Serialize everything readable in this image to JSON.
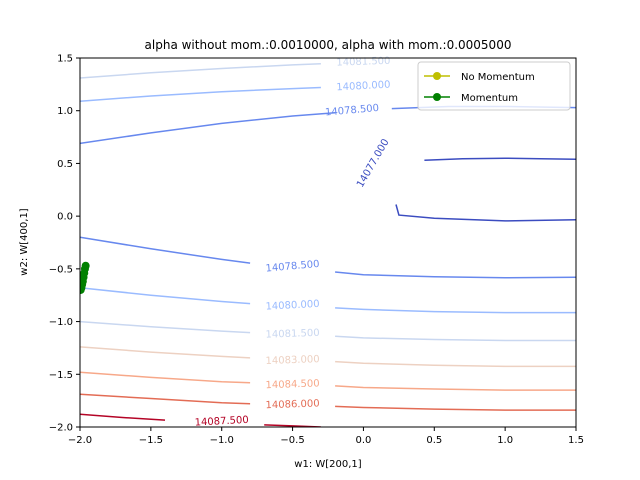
{
  "chart_data": {
    "type": "line",
    "title": "alpha without mom.:0.0010000, alpha with mom.:0.0005000",
    "xlabel": "w1: W[200,1]",
    "ylabel": "w2: W[400,1]",
    "xlim": [
      -2.0,
      1.5
    ],
    "ylim": [
      -2.0,
      1.5
    ],
    "x_ticks": [
      "-2.0",
      "-1.5",
      "-1.0",
      "-0.5",
      "0.0",
      "0.5",
      "1.0",
      "1.5"
    ],
    "y_ticks": [
      "-2.0",
      "-1.5",
      "-1.0",
      "-0.5",
      "0.0",
      "0.5",
      "1.0",
      "1.5"
    ],
    "grid": false,
    "legend_position": "top-right",
    "contours": [
      {
        "level": "14077.000",
        "color": "#3b4cc0",
        "paths": [
          [
            [
              0.43,
              0.53
            ],
            [
              0.7,
              0.545
            ],
            [
              1.0,
              0.55
            ],
            [
              1.25,
              0.545
            ],
            [
              1.5,
              0.54
            ]
          ],
          [
            [
              0.23,
              0.11
            ],
            [
              0.25,
              0.01
            ],
            [
              0.5,
              -0.02
            ],
            [
              1.0,
              -0.045
            ],
            [
              1.5,
              -0.035
            ]
          ]
        ],
        "label_at": [
          0.07,
          0.5
        ],
        "label_angle": -60
      },
      {
        "level": "14078.500",
        "color": "#6788ee",
        "paths": [
          [
            [
              -2.0,
              0.69
            ],
            [
              -1.5,
              0.79
            ],
            [
              -1.0,
              0.88
            ],
            [
              -0.5,
              0.95
            ],
            [
              -0.2,
              0.98
            ]
          ],
          [
            [
              0.2,
              1.02
            ],
            [
              0.6,
              1.04
            ],
            [
              1.0,
              1.04
            ],
            [
              1.5,
              1.03
            ]
          ],
          [
            [
              -2.0,
              -0.2
            ],
            [
              -1.5,
              -0.31
            ],
            [
              -1.0,
              -0.41
            ],
            [
              -0.8,
              -0.445
            ]
          ],
          [
            [
              -0.2,
              -0.53
            ],
            [
              0.0,
              -0.555
            ],
            [
              0.5,
              -0.575
            ],
            [
              1.0,
              -0.585
            ],
            [
              1.5,
              -0.58
            ]
          ]
        ],
        "label_at": [
          -0.08,
          1.0
        ],
        "label_angle": -5,
        "label2_at": [
          -0.5,
          -0.48
        ],
        "label2_angle": -5
      },
      {
        "level": "14080.000",
        "color": "#9abbff",
        "paths": [
          [
            [
              -2.0,
              1.09
            ],
            [
              -1.5,
              1.14
            ],
            [
              -1.0,
              1.18
            ],
            [
              -0.5,
              1.21
            ],
            [
              -0.3,
              1.22
            ]
          ],
          [
            [
              -2.0,
              -0.68
            ],
            [
              -1.5,
              -0.75
            ],
            [
              -1.0,
              -0.81
            ],
            [
              -0.8,
              -0.83
            ]
          ],
          [
            [
              -0.2,
              -0.87
            ],
            [
              0.0,
              -0.885
            ],
            [
              0.5,
              -0.905
            ],
            [
              1.0,
              -0.915
            ],
            [
              1.5,
              -0.915
            ]
          ]
        ],
        "label_at": [
          0.0,
          1.23
        ],
        "label_angle": -3,
        "label2_at": [
          -0.5,
          -0.85
        ],
        "label2_angle": -3
      },
      {
        "level": "14081.500",
        "color": "#c9d7f0",
        "paths": [
          [
            [
              -2.0,
              1.31
            ],
            [
              -1.5,
              1.36
            ],
            [
              -1.0,
              1.4
            ],
            [
              -0.5,
              1.435
            ],
            [
              -0.3,
              1.445
            ]
          ],
          [
            [
              -2.0,
              -1.0
            ],
            [
              -1.5,
              -1.05
            ],
            [
              -1.0,
              -1.09
            ],
            [
              -0.8,
              -1.105
            ]
          ],
          [
            [
              -0.2,
              -1.14
            ],
            [
              0.0,
              -1.155
            ],
            [
              0.5,
              -1.17
            ],
            [
              1.0,
              -1.18
            ],
            [
              1.5,
              -1.18
            ]
          ]
        ],
        "label_at": [
          0.0,
          1.46
        ],
        "label_angle": -2,
        "label2_at": [
          -0.5,
          -1.12
        ],
        "label2_angle": -2
      },
      {
        "level": "14083.000",
        "color": "#edd1c2",
        "paths": [
          [
            [
              -2.0,
              -1.24
            ],
            [
              -1.5,
              -1.29
            ],
            [
              -1.0,
              -1.33
            ],
            [
              -0.8,
              -1.345
            ]
          ],
          [
            [
              -0.2,
              -1.38
            ],
            [
              0.0,
              -1.395
            ],
            [
              0.5,
              -1.415
            ],
            [
              1.0,
              -1.425
            ],
            [
              1.5,
              -1.425
            ]
          ]
        ],
        "label2_at": [
          -0.5,
          -1.37
        ],
        "label2_angle": -2
      },
      {
        "level": "14084.500",
        "color": "#f7a889",
        "paths": [
          [
            [
              -2.0,
              -1.48
            ],
            [
              -1.5,
              -1.53
            ],
            [
              -1.0,
              -1.57
            ],
            [
              -0.8,
              -1.58
            ]
          ],
          [
            [
              -0.2,
              -1.61
            ],
            [
              0.0,
              -1.625
            ],
            [
              0.5,
              -1.64
            ],
            [
              1.0,
              -1.65
            ],
            [
              1.5,
              -1.65
            ]
          ]
        ],
        "label2_at": [
          -0.5,
          -1.6
        ],
        "label2_angle": -2
      },
      {
        "level": "14086.000",
        "color": "#e36c55",
        "paths": [
          [
            [
              -2.0,
              -1.69
            ],
            [
              -1.5,
              -1.73
            ],
            [
              -1.0,
              -1.77
            ],
            [
              -0.8,
              -1.78
            ]
          ],
          [
            [
              -0.2,
              -1.805
            ],
            [
              0.0,
              -1.815
            ],
            [
              0.5,
              -1.83
            ],
            [
              1.0,
              -1.84
            ],
            [
              1.5,
              -1.84
            ]
          ]
        ],
        "label2_at": [
          -0.5,
          -1.79
        ],
        "label2_angle": -2
      },
      {
        "level": "14087.500",
        "color": "#b40426",
        "paths": [
          [
            [
              -2.0,
              -1.88
            ],
            [
              -1.7,
              -1.91
            ],
            [
              -1.4,
              -1.935
            ]
          ],
          [
            [
              -0.7,
              -1.98
            ],
            [
              -0.5,
              -1.99
            ],
            [
              -0.3,
              -2.0
            ]
          ]
        ],
        "label2_at": [
          -1.0,
          -1.95
        ],
        "label2_angle": -3
      }
    ],
    "series": [
      {
        "name": "No Momentum",
        "color": "#bfbf00",
        "marker": "circle",
        "x": [],
        "y": []
      },
      {
        "name": "Momentum",
        "color": "#008000",
        "marker": "circle",
        "x": [
          -1.96,
          -1.965,
          -1.97,
          -1.975,
          -1.98,
          -1.985,
          -1.99,
          -1.995
        ],
        "y": [
          -0.47,
          -0.5,
          -0.54,
          -0.58,
          -0.62,
          -0.65,
          -0.68,
          -0.7
        ]
      }
    ]
  }
}
